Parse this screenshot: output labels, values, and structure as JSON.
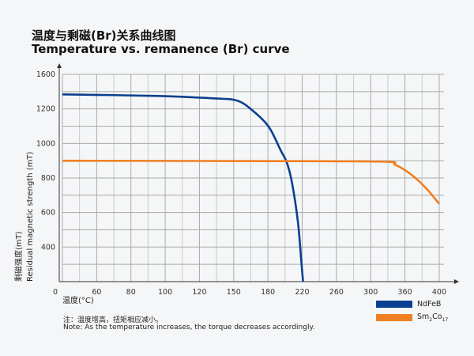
{
  "title_cn": "温度与剩磁(Br)关系曲线图",
  "title_en": "Temperature vs. remanence (Br) curve",
  "note_cn": "注：温度增高，扭矩相应减小。",
  "note_en": "Note: As the temperature increases, the torque decreases accordingly.",
  "chart_data": {
    "type": "line",
    "title": "Temperature vs. remanence (Br) curve",
    "xlabel": "温度(°C)",
    "ylabel_cn": "剩磁强度(mT)",
    "ylabel": "Residual magnetic strength (mT)",
    "x_tick_labels": [
      "0",
      "60",
      "80",
      "100",
      "120",
      "150",
      "180",
      "220",
      "260",
      "300",
      "360",
      "400"
    ],
    "y_tick_labels": [
      "1600",
      "1200",
      "1000",
      "800",
      "600",
      "400"
    ],
    "ylim": [
      200,
      1600
    ],
    "grid": true,
    "legend_position": "bottom-right",
    "series": [
      {
        "name": "NdFeB",
        "color": "#0b3f8f",
        "points": [
          [
            0,
            1284
          ],
          [
            96,
            1275
          ],
          [
            132,
            1261
          ],
          [
            153,
            1248
          ],
          [
            167,
            1188
          ],
          [
            181,
            1096
          ],
          [
            195,
            959
          ],
          [
            202,
            890
          ],
          [
            208,
            775
          ],
          [
            215,
            546
          ],
          [
            219,
            316
          ],
          [
            221,
            200
          ]
        ]
      },
      {
        "name": "Sm2Co17",
        "legend_main": "Sm",
        "legend_sub1": "2",
        "legend_mid": "Co",
        "legend_sub2": "17",
        "color": "#f07f22",
        "points": [
          [
            0,
            900
          ],
          [
            150,
            898
          ],
          [
            315,
            895
          ],
          [
            343,
            876
          ],
          [
            367,
            821
          ],
          [
            385,
            739
          ],
          [
            400,
            650
          ]
        ]
      }
    ]
  }
}
